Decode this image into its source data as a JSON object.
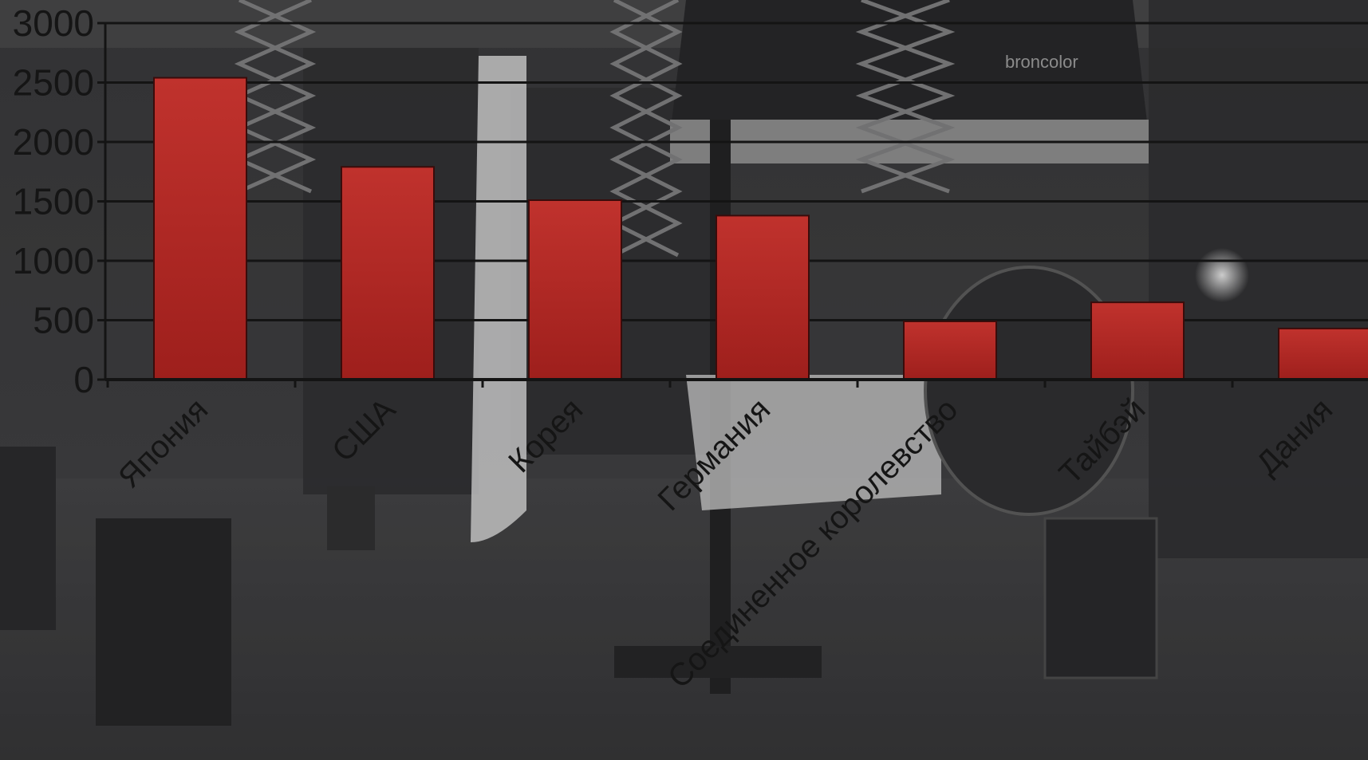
{
  "chart_data": {
    "type": "bar",
    "categories": [
      "Япония",
      "США",
      "Корея",
      "Германия",
      "Соединенное королевство",
      "Тайбэй",
      "Дания"
    ],
    "category_labels": [
      "Япония",
      "США",
      "Корея",
      "Германия",
      "Соединенное королевство",
      "Тайбэй",
      "Дания"
    ],
    "values": [
      2540,
      1790,
      1510,
      1380,
      490,
      650,
      430
    ],
    "yticks": [
      "0",
      "500",
      "1000",
      "1500",
      "2000",
      "2500",
      "3000"
    ],
    "ylim": [
      0,
      3000
    ],
    "title": "",
    "xlabel": "",
    "ylabel": "",
    "grid": true,
    "legend": "none",
    "colors": {
      "bar_top": "#c0322d",
      "bar_bottom": "#9e1f1c",
      "bar_edge": "#3a0c0b",
      "grid": "#141414",
      "text": "#151515"
    }
  },
  "background": {
    "description_icon": "photo-studio-background",
    "brand_mark": "broncolor"
  }
}
